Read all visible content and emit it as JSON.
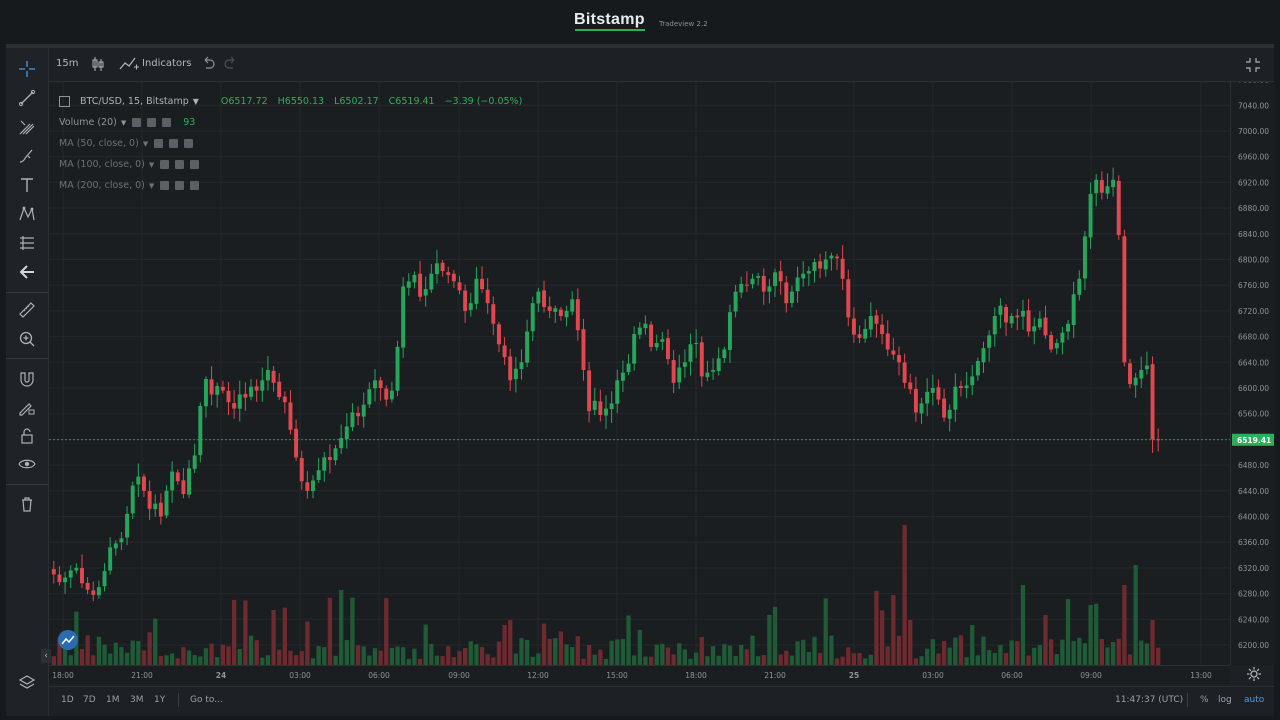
{
  "header": {
    "brand": "Bitstamp",
    "version": "Tradeview 2.2"
  },
  "toolbar": {
    "interval": "15m",
    "indicators_label": "Indicators"
  },
  "legend": {
    "symbol": "BTC/USD, 15, Bitstamp",
    "open": "O6517.72",
    "high": "H6550.13",
    "low": "L6502.17",
    "close": "C6519.41",
    "change": "−3.39 (−0.05%)",
    "volume_label": "Volume (20)",
    "volume_value": "93",
    "ma50": "MA (50, close, 0)",
    "ma100": "MA (100, close, 0)",
    "ma200": "MA (200, close, 0)"
  },
  "price_axis": {
    "labels": [
      "7080.00",
      "7040.00",
      "7000.00",
      "6960.00",
      "6920.00",
      "6880.00",
      "6840.00",
      "6800.00",
      "6760.00",
      "6720.00",
      "6680.00",
      "6640.00",
      "6600.00",
      "6560.00",
      "6520.00",
      "6480.00",
      "6440.00",
      "6400.00",
      "6360.00",
      "6320.00",
      "6280.00",
      "6240.00",
      "6200.00"
    ],
    "last_price": "6519.41"
  },
  "time_axis": {
    "labels": [
      "18:00",
      "21:00",
      "24",
      "03:00",
      "06:00",
      "09:00",
      "12:00",
      "15:00",
      "18:00",
      "21:00",
      "25",
      "03:00",
      "06:00",
      "09:00",
      "13:00"
    ]
  },
  "bottombar": {
    "ranges": [
      "1D",
      "7D",
      "1M",
      "3M",
      "1Y"
    ],
    "goto": "Go to...",
    "clock": "11:47:37 (UTC)",
    "percent": "%",
    "log": "log",
    "auto": "auto"
  },
  "colors": {
    "up": "#26a65b",
    "down": "#e0474f",
    "accent": "#2ab05b"
  },
  "chart_data": {
    "type": "candlestick",
    "symbol": "BTC/USD",
    "interval": "15",
    "ylim": [
      6180,
      7090
    ],
    "close_series": [
      6310,
      6298,
      6305,
      6316,
      6320,
      6296,
      6286,
      6278,
      6290,
      6315,
      6352,
      6358,
      6366,
      6404,
      6448,
      6462,
      6440,
      6412,
      6420,
      6400,
      6440,
      6470,
      6455,
      6435,
      6475,
      6495,
      6572,
      6614,
      6590,
      6603,
      6596,
      6578,
      6568,
      6590,
      6585,
      6602,
      6596,
      6612,
      6628,
      6608,
      6586,
      6578,
      6535,
      6492,
      6455,
      6440,
      6456,
      6472,
      6492,
      6488,
      6506,
      6522,
      6540,
      6562,
      6556,
      6574,
      6598,
      6612,
      6600,
      6582,
      6596,
      6664,
      6758,
      6766,
      6776,
      6742,
      6754,
      6778,
      6794,
      6782,
      6776,
      6766,
      6752,
      6720,
      6732,
      6770,
      6754,
      6732,
      6700,
      6668,
      6648,
      6612,
      6630,
      6640,
      6688,
      6732,
      6750,
      6726,
      6720,
      6724,
      6712,
      6720,
      6738,
      6690,
      6628,
      6564,
      6580,
      6558,
      6568,
      6576,
      6612,
      6624,
      6638,
      6684,
      6694,
      6700,
      6664,
      6670,
      6676,
      6645,
      6608,
      6632,
      6640,
      6668,
      6670,
      6618,
      6624,
      6628,
      6646,
      6660,
      6718,
      6750,
      6762,
      6760,
      6770,
      6774,
      6750,
      6758,
      6780,
      6766,
      6732,
      6750,
      6772,
      6778,
      6782,
      6796,
      6786,
      6800,
      6806,
      6802,
      6770,
      6710,
      6683,
      6678,
      6692,
      6712,
      6700,
      6684,
      6660,
      6652,
      6640,
      6608,
      6598,
      6562,
      6576,
      6594,
      6600,
      6582,
      6554,
      6566,
      6602,
      6600,
      6604,
      6618,
      6642,
      6662,
      6682,
      6712,
      6728,
      6702,
      6712,
      6710,
      6720,
      6688,
      6696,
      6708,
      6682,
      6660,
      6670,
      6686,
      6700,
      6746,
      6770,
      6836,
      6902,
      6924,
      6904,
      6914,
      6924,
      6838,
      6640,
      6606,
      6616,
      6628,
      6635,
      6520,
      6519
    ],
    "last": 6519.41,
    "volume_note": "Volume (20) histogram shown beneath candles"
  }
}
